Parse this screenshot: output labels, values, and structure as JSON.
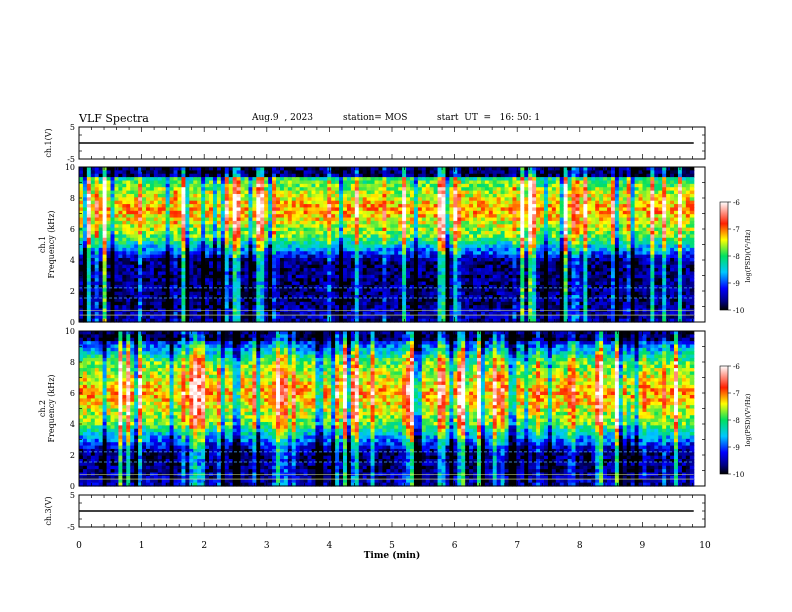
{
  "header": {
    "title": "VLF Spectra",
    "date": "Aug.9  , 2023",
    "station": "station= MOS",
    "start_ut": "start  UT  =   16: 50: 1"
  },
  "chart_data": [
    {
      "type": "line",
      "panel": "channel-1-voltage",
      "ylabel": "ch.1(V)",
      "ylim": [
        -5,
        5
      ],
      "yticks": [
        "5",
        "-5"
      ],
      "xlim": [
        0,
        10
      ],
      "series": [
        {
          "x": [
            0,
            9.82
          ],
          "y": [
            0,
            0
          ]
        }
      ]
    },
    {
      "type": "heatmap",
      "panel": "channel-1-spectrogram",
      "ylabel": "ch.1  Frequency (kHz)",
      "ylim": [
        0,
        10
      ],
      "yticks": [
        "0",
        "2",
        "4",
        "6",
        "8",
        "10"
      ],
      "xlim": [
        0,
        10
      ],
      "data_xmax": 9.82,
      "band_kHz": [
        5.5,
        9.0
      ],
      "colorbar": {
        "label": "log(PSD)(V²/Hz)",
        "ticks": [
          "-6",
          "-7",
          "-8",
          "-9",
          "-10"
        ],
        "range": [
          -10,
          -6
        ]
      }
    },
    {
      "type": "heatmap",
      "panel": "channel-2-spectrogram",
      "ylabel": "ch.2  Frequency (kHz)",
      "ylim": [
        0,
        10
      ],
      "yticks": [
        "0",
        "2",
        "4",
        "6",
        "8",
        "10"
      ],
      "xlim": [
        0,
        10
      ],
      "data_xmax": 9.82,
      "band_kHz": [
        4.0,
        8.0
      ],
      "colorbar": {
        "label": "log(PSD)(V²/Hz)",
        "ticks": [
          "-6",
          "-7",
          "-8",
          "-9",
          "-10"
        ],
        "range": [
          -10,
          -6
        ]
      }
    },
    {
      "type": "line",
      "panel": "channel-3-voltage",
      "ylabel": "ch.3(V)",
      "ylim": [
        -5,
        5
      ],
      "yticks": [
        "5",
        "-5"
      ],
      "xlim": [
        0,
        10
      ],
      "xlabel": "Time  (min)",
      "xticks": [
        "0",
        "1",
        "2",
        "3",
        "4",
        "5",
        "6",
        "7",
        "8",
        "9",
        "10"
      ],
      "series": [
        {
          "x": [
            0,
            9.82
          ],
          "y": [
            0,
            0
          ]
        }
      ]
    }
  ]
}
